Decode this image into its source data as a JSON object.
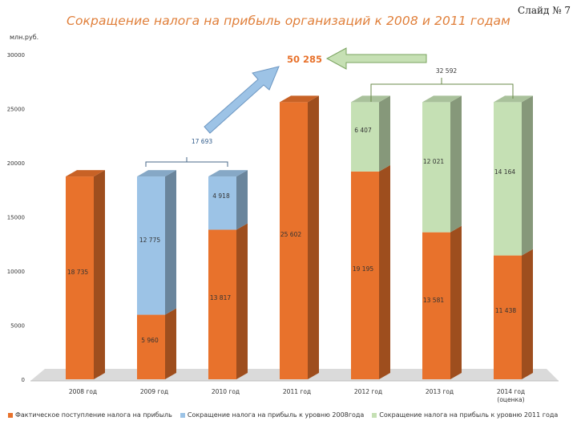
{
  "slide_label": "Слайд № 7",
  "chart_data": {
    "type": "bar",
    "title": "Сокращение налога на прибыль организаций к 2008 и 2011 годам",
    "ylabel": "млн.руб.",
    "ylim": [
      0,
      30000
    ],
    "yticks": [
      0,
      5000,
      10000,
      15000,
      20000,
      25000,
      30000
    ],
    "categories": [
      "2008 год",
      "2009 год",
      "2010 год",
      "2011 год",
      "2012 год",
      "2013 год",
      "2014 год (оценка)"
    ],
    "series": [
      {
        "name": "Фактическое поступление налога на прибыль",
        "color": "#e8722c",
        "values": [
          18735,
          5960,
          13817,
          25602,
          19195,
          13581,
          11438
        ]
      },
      {
        "name": "Сокращение налога на прибыль к уровню 2008года",
        "color": "#9cc3e6",
        "values": [
          0,
          12775,
          4918,
          0,
          0,
          0,
          0
        ]
      },
      {
        "name": "Сокращение налога на прибыль к уровню 2011 года",
        "color": "#c5e0b4",
        "values": [
          0,
          0,
          0,
          0,
          6407,
          12021,
          14164
        ]
      }
    ],
    "data_labels": {
      "orange": [
        "18 735",
        "5 960",
        "13 817",
        "25 602",
        "19 195",
        "13 581",
        "11 438"
      ],
      "blue": [
        "",
        "12 775",
        "4 918",
        "",
        "",
        "",
        ""
      ],
      "green": [
        "",
        "",
        "",
        "",
        "6 407",
        "12 021",
        "14 164"
      ]
    },
    "annotations": {
      "brace_2008": "17 693",
      "brace_2011": "32 592",
      "total": "50 285"
    },
    "legend_position": "bottom"
  }
}
